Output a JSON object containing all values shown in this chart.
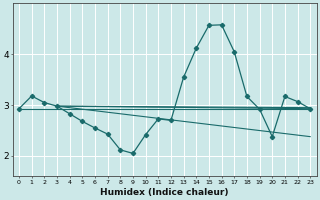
{
  "xlabel": "Humidex (Indice chaleur)",
  "background_color": "#cce8e8",
  "grid_color": "#ffffff",
  "line_color": "#1a6b6b",
  "xlim": [
    -0.5,
    23.5
  ],
  "ylim": [
    1.6,
    5.0
  ],
  "yticks": [
    2,
    3,
    4
  ],
  "main_series_x": [
    0,
    1,
    2,
    3,
    4,
    5,
    6,
    7,
    8,
    9,
    10,
    11,
    12,
    13,
    14,
    15,
    16,
    17,
    18,
    19,
    20,
    21,
    22,
    23
  ],
  "main_series_y": [
    2.93,
    3.18,
    3.05,
    2.98,
    2.83,
    2.68,
    2.55,
    2.43,
    2.12,
    2.05,
    2.42,
    2.73,
    2.7,
    3.55,
    4.12,
    4.57,
    4.58,
    4.05,
    3.17,
    2.92,
    2.38,
    3.17,
    3.07,
    2.93
  ],
  "fan_lines": [
    {
      "x": [
        0,
        23
      ],
      "y": [
        2.93,
        2.93
      ]
    },
    {
      "x": [
        3,
        23
      ],
      "y": [
        2.98,
        2.95
      ]
    },
    {
      "x": [
        3,
        23
      ],
      "y": [
        2.98,
        2.93
      ]
    },
    {
      "x": [
        3,
        23
      ],
      "y": [
        2.98,
        2.38
      ]
    }
  ]
}
